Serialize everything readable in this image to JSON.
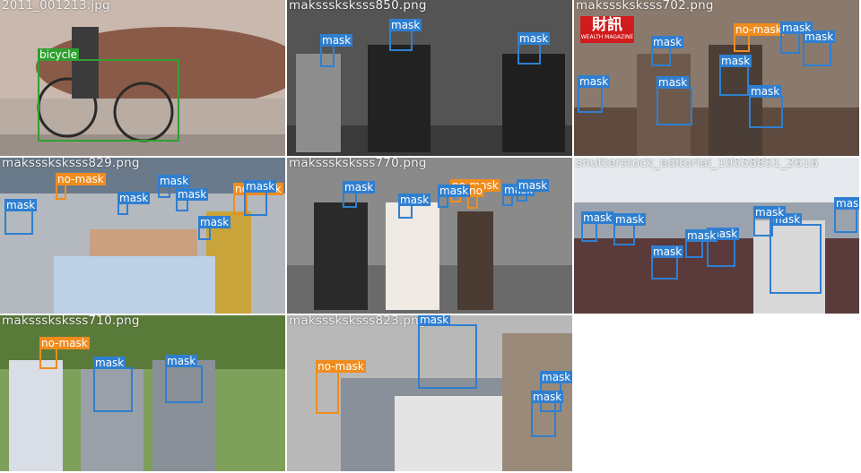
{
  "tiles": [
    {
      "filename": "2011_001213.jpg",
      "detections": [
        {
          "label": "bicycle",
          "color": "#2fa02f"
        }
      ]
    },
    {
      "filename": "maksssksksss850.png",
      "detections": [
        {
          "label": "mask",
          "color": "#2f7fd0"
        },
        {
          "label": "mask",
          "color": "#2f7fd0"
        },
        {
          "label": "mask",
          "color": "#2f7fd0"
        }
      ]
    },
    {
      "filename": "maksssksksss702.png",
      "detections": [
        {
          "label": "no-mask",
          "color": "#f08c1e"
        },
        {
          "label": "mask",
          "color": "#2f7fd0"
        },
        {
          "label": "mask",
          "color": "#2f7fd0"
        },
        {
          "label": "mask",
          "color": "#2f7fd0"
        },
        {
          "label": "mask",
          "color": "#2f7fd0"
        },
        {
          "label": "mask",
          "color": "#2f7fd0"
        },
        {
          "label": "mask",
          "color": "#2f7fd0"
        },
        {
          "label": "mask",
          "color": "#2f7fd0"
        }
      ]
    },
    {
      "filename": "maksssksksss829.png",
      "detections": [
        {
          "label": "no-mask",
          "color": "#f08c1e"
        },
        {
          "label": "no-mask",
          "color": "#f08c1e"
        },
        {
          "label": "mask",
          "color": "#2f7fd0"
        },
        {
          "label": "mask",
          "color": "#2f7fd0"
        },
        {
          "label": "mask",
          "color": "#2f7fd0"
        },
        {
          "label": "mask",
          "color": "#2f7fd0"
        },
        {
          "label": "mask",
          "color": "#2f7fd0"
        },
        {
          "label": "mask",
          "color": "#2f7fd0"
        }
      ]
    },
    {
      "filename": "maksssksksss770.png",
      "detections": [
        {
          "label": "no-mask",
          "color": "#f08c1e"
        },
        {
          "label": "no",
          "color": "#f08c1e"
        },
        {
          "label": "mask",
          "color": "#2f7fd0"
        },
        {
          "label": "mask",
          "color": "#2f7fd0"
        },
        {
          "label": "mask",
          "color": "#2f7fd0"
        },
        {
          "label": "mask",
          "color": "#2f7fd0"
        },
        {
          "label": "mask",
          "color": "#2f7fd0"
        }
      ]
    },
    {
      "filename": "shutterstock_editorial_10558851_2616",
      "detections": [
        {
          "label": "mask",
          "color": "#2f7fd0"
        },
        {
          "label": "mask",
          "color": "#2f7fd0"
        },
        {
          "label": "mask",
          "color": "#2f7fd0"
        },
        {
          "label": "mask",
          "color": "#2f7fd0"
        },
        {
          "label": "mask",
          "color": "#2f7fd0"
        },
        {
          "label": "mask",
          "color": "#2f7fd0"
        },
        {
          "label": "mask",
          "color": "#2f7fd0"
        },
        {
          "label": "mask",
          "color": "#2f7fd0"
        }
      ]
    },
    {
      "filename": "maksssksksss710.png",
      "detections": [
        {
          "label": "no-mask",
          "color": "#f08c1e"
        },
        {
          "label": "mask",
          "color": "#2f7fd0"
        },
        {
          "label": "mask",
          "color": "#2f7fd0"
        }
      ]
    },
    {
      "filename": "maksssksksss823.png",
      "detections": [
        {
          "label": "mask",
          "color": "#2f7fd0"
        },
        {
          "label": "no-mask",
          "color": "#f08c1e"
        },
        {
          "label": "mask",
          "color": "#2f7fd0"
        },
        {
          "label": "mask",
          "color": "#2f7fd0"
        }
      ]
    }
  ],
  "logo": {
    "text": "財訊",
    "subtext": "WEALTH MAGAZINE"
  }
}
